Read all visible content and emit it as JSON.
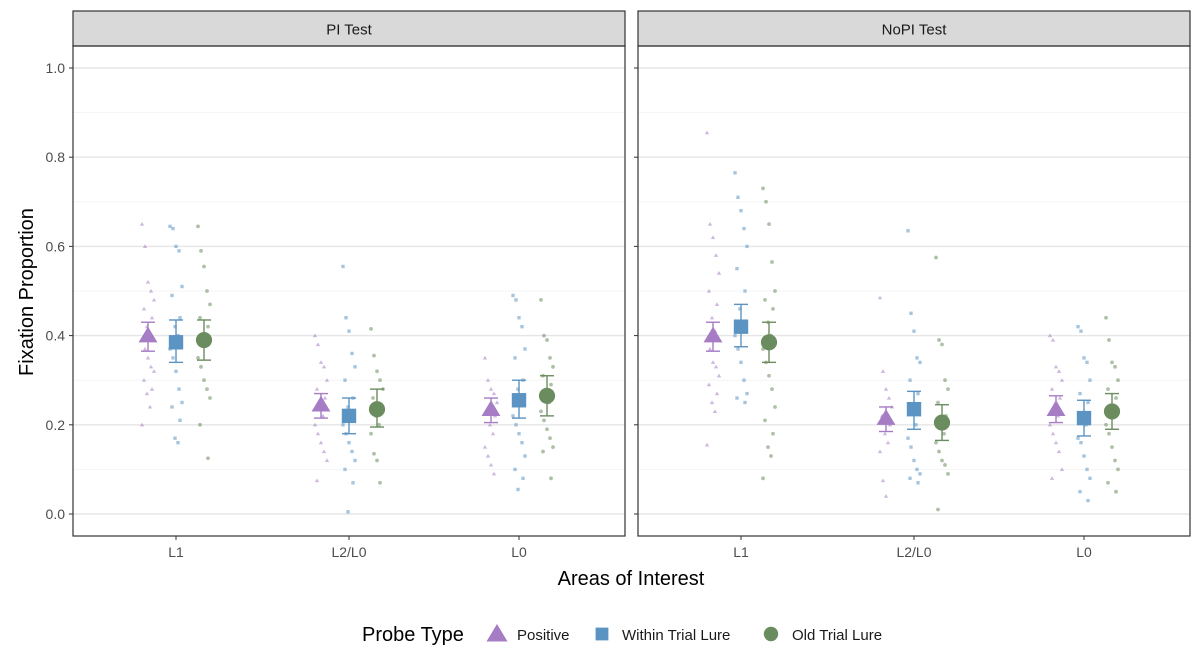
{
  "chart_data": {
    "type": "scatter",
    "subtype": "faceted point-range with jittered raw points",
    "ylabel": "Fixation Proportion",
    "xlabel": "Areas of Interest",
    "ylim": [
      0,
      1
    ],
    "y_ticks": [
      "0.0",
      "0.2",
      "0.4",
      "0.6",
      "0.8",
      "1.0"
    ],
    "categories": [
      "L1",
      "L2/L0",
      "L0"
    ],
    "legend": {
      "title": "Probe Type",
      "position": "bottom",
      "entries": [
        {
          "name": "Positive",
          "shape": "triangle",
          "color": "#a67cc4"
        },
        {
          "name": "Within Trial Lure",
          "shape": "square",
          "color": "#5b93c2"
        },
        {
          "name": "Old Trial Lure",
          "shape": "circle",
          "color": "#6b8c5e"
        }
      ]
    },
    "panels": [
      {
        "title": "PI Test",
        "series": [
          {
            "name": "Positive",
            "means": [
              0.4,
              0.245,
              0.235
            ],
            "ci_low": [
              0.365,
              0.215,
              0.205
            ],
            "ci_high": [
              0.43,
              0.27,
              0.26
            ],
            "raw": [
              [
                0.65,
                0.6,
                0.52,
                0.5,
                0.48,
                0.46,
                0.44,
                0.42,
                0.4,
                0.39,
                0.37,
                0.35,
                0.33,
                0.32,
                0.3,
                0.28,
                0.27,
                0.24,
                0.2
              ],
              [
                0.4,
                0.38,
                0.34,
                0.33,
                0.3,
                0.28,
                0.26,
                0.24,
                0.22,
                0.2,
                0.18,
                0.16,
                0.14,
                0.12,
                0.075
              ],
              [
                0.35,
                0.3,
                0.28,
                0.27,
                0.25,
                0.23,
                0.22,
                0.2,
                0.18,
                0.15,
                0.13,
                0.11,
                0.09
              ]
            ]
          },
          {
            "name": "Within Trial Lure",
            "means": [
              0.385,
              0.22,
              0.255
            ],
            "ci_low": [
              0.34,
              0.18,
              0.215
            ],
            "ci_high": [
              0.435,
              0.26,
              0.3
            ],
            "raw": [
              [
                0.645,
                0.64,
                0.6,
                0.59,
                0.51,
                0.49,
                0.44,
                0.42,
                0.4,
                0.37,
                0.35,
                0.32,
                0.28,
                0.25,
                0.24,
                0.21,
                0.17,
                0.16
              ],
              [
                0.555,
                0.44,
                0.41,
                0.36,
                0.33,
                0.3,
                0.26,
                0.24,
                0.22,
                0.2,
                0.18,
                0.16,
                0.14,
                0.12,
                0.1,
                0.07,
                0.005
              ],
              [
                0.49,
                0.48,
                0.44,
                0.42,
                0.37,
                0.35,
                0.3,
                0.28,
                0.25,
                0.22,
                0.2,
                0.18,
                0.16,
                0.13,
                0.1,
                0.08,
                0.055
              ]
            ]
          },
          {
            "name": "Old Trial Lure",
            "means": [
              0.39,
              0.235,
              0.265
            ],
            "ci_low": [
              0.345,
              0.195,
              0.22
            ],
            "ci_high": [
              0.435,
              0.28,
              0.31
            ],
            "raw": [
              [
                0.645,
                0.59,
                0.555,
                0.5,
                0.47,
                0.44,
                0.42,
                0.4,
                0.38,
                0.35,
                0.33,
                0.3,
                0.28,
                0.26,
                0.2,
                0.125
              ],
              [
                0.415,
                0.355,
                0.32,
                0.3,
                0.28,
                0.26,
                0.24,
                0.22,
                0.2,
                0.18,
                0.135,
                0.12,
                0.07
              ],
              [
                0.48,
                0.4,
                0.39,
                0.35,
                0.33,
                0.31,
                0.29,
                0.27,
                0.25,
                0.23,
                0.21,
                0.19,
                0.17,
                0.15,
                0.14,
                0.08
              ]
            ]
          }
        ]
      },
      {
        "title": "NoPI Test",
        "series": [
          {
            "name": "Positive",
            "means": [
              0.4,
              0.215,
              0.235
            ],
            "ci_low": [
              0.365,
              0.185,
              0.205
            ],
            "ci_high": [
              0.43,
              0.24,
              0.265
            ],
            "raw": [
              [
                0.855,
                0.65,
                0.62,
                0.58,
                0.54,
                0.5,
                0.47,
                0.44,
                0.41,
                0.39,
                0.37,
                0.34,
                0.33,
                0.31,
                0.29,
                0.27,
                0.25,
                0.23,
                0.155
              ],
              [
                0.485,
                0.32,
                0.28,
                0.26,
                0.24,
                0.22,
                0.2,
                0.18,
                0.16,
                0.14,
                0.075,
                0.04
              ],
              [
                0.4,
                0.39,
                0.33,
                0.32,
                0.3,
                0.28,
                0.26,
                0.24,
                0.22,
                0.2,
                0.18,
                0.16,
                0.14,
                0.1,
                0.08
              ]
            ]
          },
          {
            "name": "Within Trial Lure",
            "means": [
              0.42,
              0.235,
              0.215
            ],
            "ci_low": [
              0.375,
              0.19,
              0.175
            ],
            "ci_high": [
              0.47,
              0.275,
              0.255
            ],
            "raw": [
              [
                0.765,
                0.71,
                0.68,
                0.64,
                0.6,
                0.55,
                0.5,
                0.46,
                0.43,
                0.4,
                0.37,
                0.34,
                0.3,
                0.27,
                0.26,
                0.25
              ],
              [
                0.635,
                0.45,
                0.41,
                0.35,
                0.34,
                0.3,
                0.27,
                0.24,
                0.2,
                0.17,
                0.15,
                0.12,
                0.1,
                0.09,
                0.08,
                0.07
              ],
              [
                0.42,
                0.41,
                0.35,
                0.34,
                0.3,
                0.27,
                0.25,
                0.22,
                0.2,
                0.17,
                0.16,
                0.13,
                0.1,
                0.08,
                0.05,
                0.03
              ]
            ]
          },
          {
            "name": "Old Trial Lure",
            "means": [
              0.385,
              0.205,
              0.23
            ],
            "ci_low": [
              0.34,
              0.165,
              0.19
            ],
            "ci_high": [
              0.43,
              0.245,
              0.27
            ],
            "raw": [
              [
                0.73,
                0.7,
                0.65,
                0.565,
                0.5,
                0.48,
                0.46,
                0.43,
                0.4,
                0.37,
                0.34,
                0.31,
                0.28,
                0.24,
                0.21,
                0.18,
                0.15,
                0.13,
                0.08
              ],
              [
                0.575,
                0.39,
                0.38,
                0.3,
                0.28,
                0.25,
                0.22,
                0.2,
                0.18,
                0.16,
                0.14,
                0.12,
                0.11,
                0.09,
                0.01
              ],
              [
                0.44,
                0.39,
                0.34,
                0.33,
                0.3,
                0.28,
                0.26,
                0.24,
                0.22,
                0.2,
                0.18,
                0.15,
                0.12,
                0.1,
                0.07,
                0.05
              ]
            ]
          }
        ]
      }
    ]
  }
}
